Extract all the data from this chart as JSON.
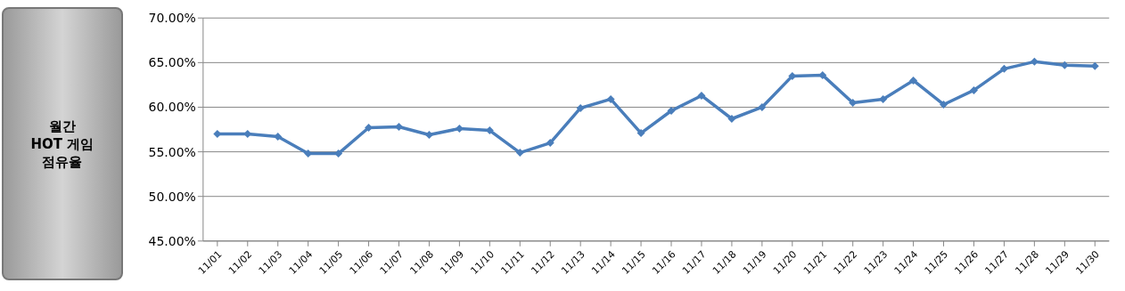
{
  "chart_data": {
    "type": "line",
    "title": "월간\nHOT 게임\n점유율",
    "categories": [
      "11/01",
      "11/02",
      "11/03",
      "11/04",
      "11/05",
      "11/06",
      "11/07",
      "11/08",
      "11/09",
      "11/10",
      "11/11",
      "11/12",
      "11/13",
      "11/14",
      "11/15",
      "11/16",
      "11/17",
      "11/18",
      "11/19",
      "11/20",
      "11/21",
      "11/22",
      "11/23",
      "11/24",
      "11/25",
      "11/26",
      "11/27",
      "11/28",
      "11/29",
      "11/30"
    ],
    "series": [
      {
        "color": "#4a7ebb",
        "values": [
          57.0,
          57.0,
          56.7,
          54.8,
          54.8,
          57.7,
          57.8,
          56.9,
          57.6,
          57.4,
          54.9,
          56.0,
          59.9,
          60.9,
          57.1,
          59.6,
          61.3,
          58.7,
          60.0,
          63.5,
          63.6,
          60.5,
          60.9,
          63.0,
          60.3,
          61.9,
          64.3,
          65.1,
          64.7,
          64.6
        ]
      }
    ],
    "ylim": [
      45,
      70
    ],
    "yticks": [
      {
        "value": 45,
        "label": "45.00%"
      },
      {
        "value": 50,
        "label": "50.00%"
      },
      {
        "value": 55,
        "label": "55.00%"
      },
      {
        "value": 60,
        "label": "60.00%"
      },
      {
        "value": 65,
        "label": "65.00%"
      },
      {
        "value": 70,
        "label": "70.00%"
      }
    ],
    "grid": "y",
    "marker": "diamond",
    "line_style": "solid",
    "legend": false
  }
}
